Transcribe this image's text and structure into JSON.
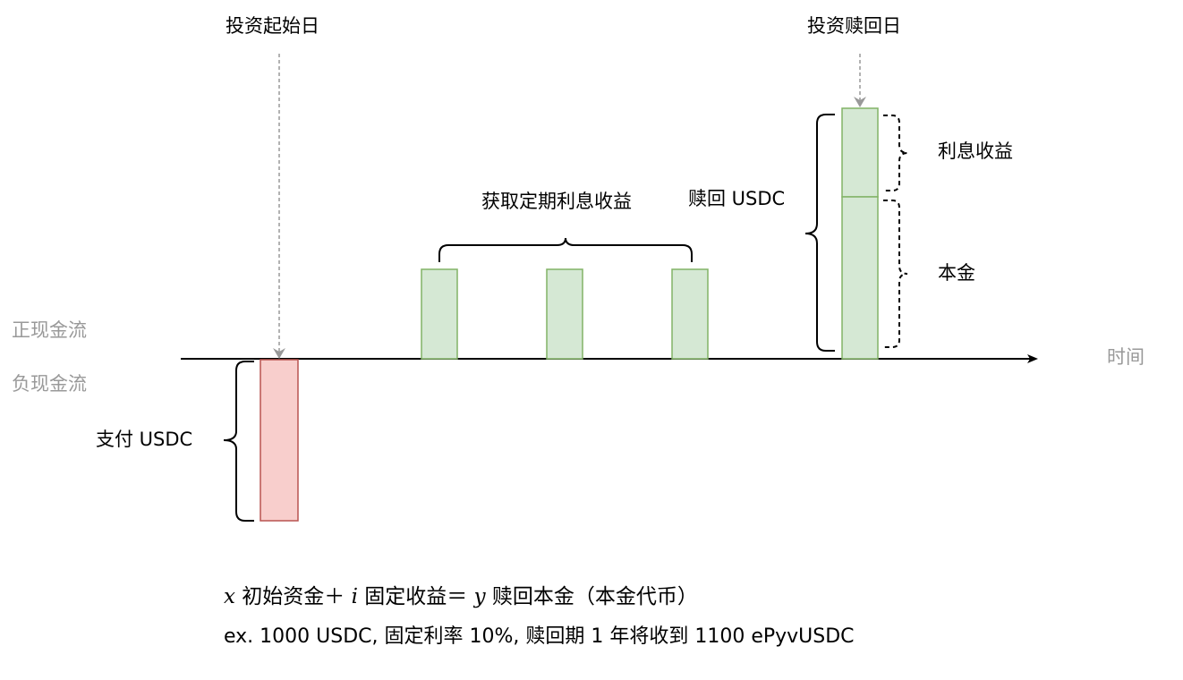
{
  "diagram": {
    "labels": {
      "start_day": "投资起始日",
      "redeem_day": "投资赎回日",
      "periodic_interest": "获取定期利息收益",
      "redeem_usdc": "赎回 USDC",
      "interest_income": "利息收益",
      "principal": "本金",
      "positive_cashflow": "正现金流",
      "negative_cashflow": "负现金流",
      "time": "时间",
      "pay_usdc": "支付 USDC"
    },
    "colors": {
      "inflow_fill": "#d5e8d4",
      "inflow_stroke": "#82b366",
      "outflow_fill": "#f8cecc",
      "outflow_stroke": "#b85450",
      "axis": "#000000",
      "pointer": "#999999"
    }
  },
  "formula": {
    "x": "x",
    "x_text": "初始资金＋",
    "i": "i",
    "i_text": "固定收益＝",
    "y": "y",
    "y_text": "赎回本金（本金代币）"
  },
  "example": "ex. 1000 USDC, 固定利率 10%, 赎回期 1 年将收到 1100 ePyvUSDC"
}
